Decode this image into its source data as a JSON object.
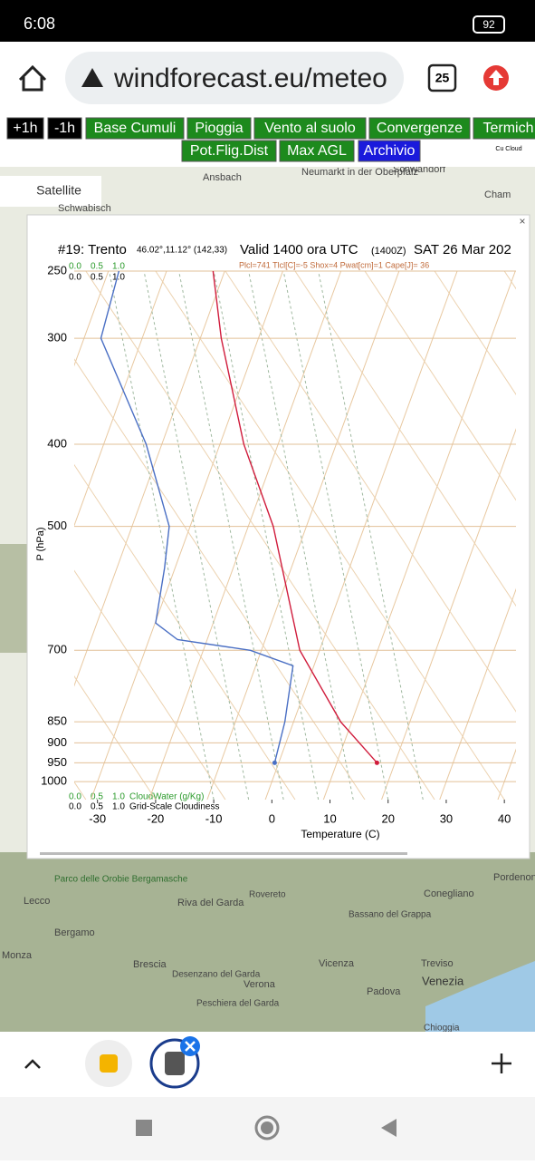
{
  "status_bar": {
    "time": "6:08",
    "battery": "92"
  },
  "browser": {
    "url": "windforecast.eu/meteo",
    "tabs": "25"
  },
  "toolbar": {
    "row1": [
      "+1h",
      "-1h",
      "Base Cumuli",
      "Pioggia",
      "Vento al suolo",
      "Convergenze",
      "Termich"
    ],
    "row2": [
      "Pot.Flig.Dist",
      "Max AGL",
      "Archivio"
    ],
    "corner": "Cu Cloud"
  },
  "map": {
    "button": "Satellite",
    "labels": [
      "Ansbach",
      "Neumarkt in der Oberpfalz",
      "Schwandorf",
      "Cham",
      "Schwabisch",
      "Parco delle Orobie Bergamasche",
      "Lecco",
      "Bergamo",
      "Monza",
      "Brescia",
      "Riva del Garda",
      "Rovereto",
      "Bassano del Grappa",
      "Conegliano",
      "Pordenone",
      "Treviso",
      "Vicenza",
      "Padova",
      "Venezia",
      "Verona",
      "Desenzano del Garda",
      "Peschiera del Garda",
      "Chioggia"
    ]
  },
  "chart_data": {
    "type": "skewt",
    "station": "#19: Trento",
    "coords": "46.02°,11.12° (142,33)",
    "valid": "Valid 1400 ora UTC",
    "valid_z": "(1400Z)",
    "date": "SAT 26 Mar 202",
    "indices": "Plcl=741 Tlcl[C]=-5 Shox=4 Pwat[cm]=1 Cape[J]= 36",
    "top_scales": [
      "0.0",
      "0.5",
      "1.0"
    ],
    "legend_cloudwater": "CloudWater (g/Kg)",
    "legend_cloudiness": "Grid-Scale Cloudiness",
    "ylabel": "P (hPa)",
    "xlabel": "Temperature (C)",
    "xlim": [
      -34,
      42
    ],
    "xticks": [
      -30,
      -20,
      -10,
      0,
      10,
      20,
      30,
      40
    ],
    "ylim": [
      1050,
      250
    ],
    "yticks": [
      250,
      300,
      400,
      500,
      700,
      850,
      900,
      950,
      1000
    ],
    "log_scale_y": true,
    "grid": true,
    "series": [
      {
        "name": "Temperature",
        "color": "#d01c3c",
        "pressure": [
          950,
          850,
          700,
          500,
          400,
          300,
          250
        ],
        "values": [
          16.9,
          8.1,
          -3.4,
          -15.7,
          -25.9,
          -36.4,
          -42
        ]
      },
      {
        "name": "Dewpoint",
        "color": "#4a6fc4",
        "pressure": [
          950,
          850,
          730,
          700,
          680,
          650,
          560,
          500,
          400,
          300,
          250
        ],
        "values": [
          -0.7,
          -1.5,
          -3.6,
          -11.9,
          -25.1,
          -29.9,
          -31.8,
          -33.6,
          -42.7,
          -57.1,
          -58.2
        ]
      }
    ]
  }
}
